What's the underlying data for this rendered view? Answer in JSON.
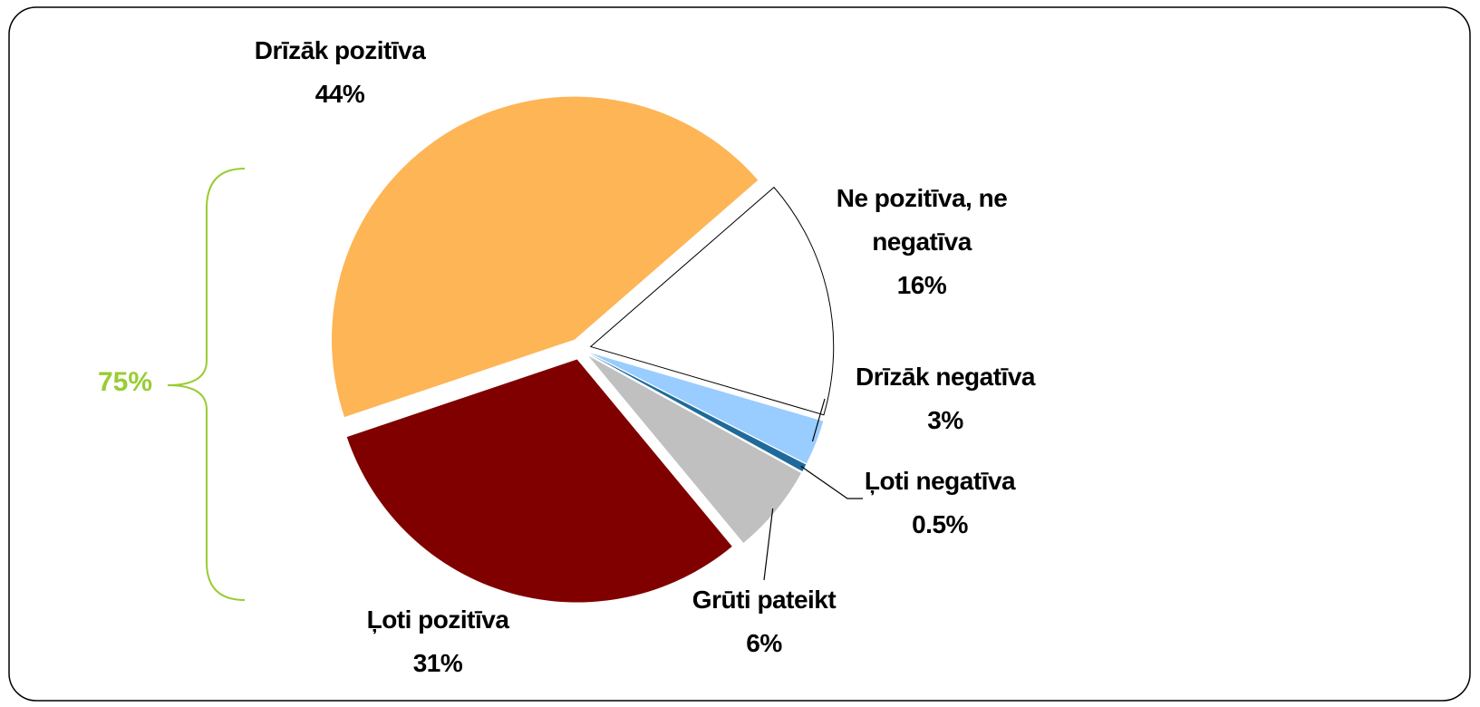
{
  "chart_data": {
    "type": "pie",
    "categories": [
      "Ne pozitīva, ne negatīva",
      "Drīzāk negatīva",
      "Ļoti negatīva",
      "Grūti pateikt",
      "Ļoti pozitīva",
      "Drīzāk pozitīva"
    ],
    "values": [
      16,
      3,
      0.5,
      6,
      31,
      44
    ],
    "value_labels": [
      "16%",
      "3%",
      "0.5%",
      "6%",
      "31%",
      "44%"
    ],
    "colors": [
      "#ffffff",
      "#99ccff",
      "#1f6a9a",
      "#c0c0c0",
      "#800000",
      "#fdb556"
    ],
    "annotations": [
      "75%"
    ]
  }
}
